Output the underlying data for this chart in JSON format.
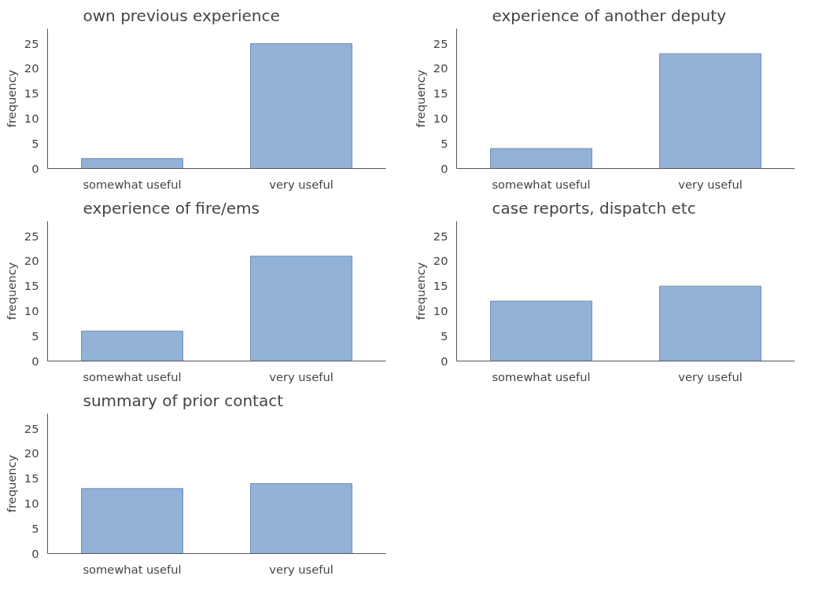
{
  "chart_data": [
    {
      "type": "bar",
      "title": "own previous experience",
      "ylabel": "frequency",
      "categories": [
        "somewhat useful",
        "very useful"
      ],
      "values": [
        2,
        25
      ],
      "color": "#92b2d6",
      "ylim": [
        0,
        28
      ],
      "yticks": [
        0,
        5,
        10,
        15,
        20,
        25
      ],
      "grid": false
    },
    {
      "type": "bar",
      "title": "experience of another deputy",
      "ylabel": "frequency",
      "categories": [
        "somewhat useful",
        "very useful"
      ],
      "values": [
        4,
        23
      ],
      "color": "#92b2d6",
      "ylim": [
        0,
        28
      ],
      "yticks": [
        0,
        5,
        10,
        15,
        20,
        25
      ],
      "grid": false
    },
    {
      "type": "bar",
      "title": "experience of fire/ems",
      "ylabel": "frequency",
      "categories": [
        "somewhat useful",
        "very useful"
      ],
      "values": [
        6,
        21
      ],
      "color": "#92b2d6",
      "ylim": [
        0,
        28
      ],
      "yticks": [
        0,
        5,
        10,
        15,
        20,
        25
      ],
      "grid": false
    },
    {
      "type": "bar",
      "title": "case reports, dispatch etc",
      "ylabel": "frequency",
      "categories": [
        "somewhat useful",
        "very useful"
      ],
      "values": [
        12,
        15
      ],
      "color": "#92b2d6",
      "ylim": [
        0,
        28
      ],
      "yticks": [
        0,
        5,
        10,
        15,
        20,
        25
      ],
      "grid": false
    },
    {
      "type": "bar",
      "title": "summary of prior contact",
      "ylabel": "frequency",
      "categories": [
        "somewhat useful",
        "very useful"
      ],
      "values": [
        13,
        14
      ],
      "color": "#92b2d6",
      "ylim": [
        0,
        28
      ],
      "yticks": [
        0,
        5,
        10,
        15,
        20,
        25
      ],
      "grid": false
    }
  ]
}
